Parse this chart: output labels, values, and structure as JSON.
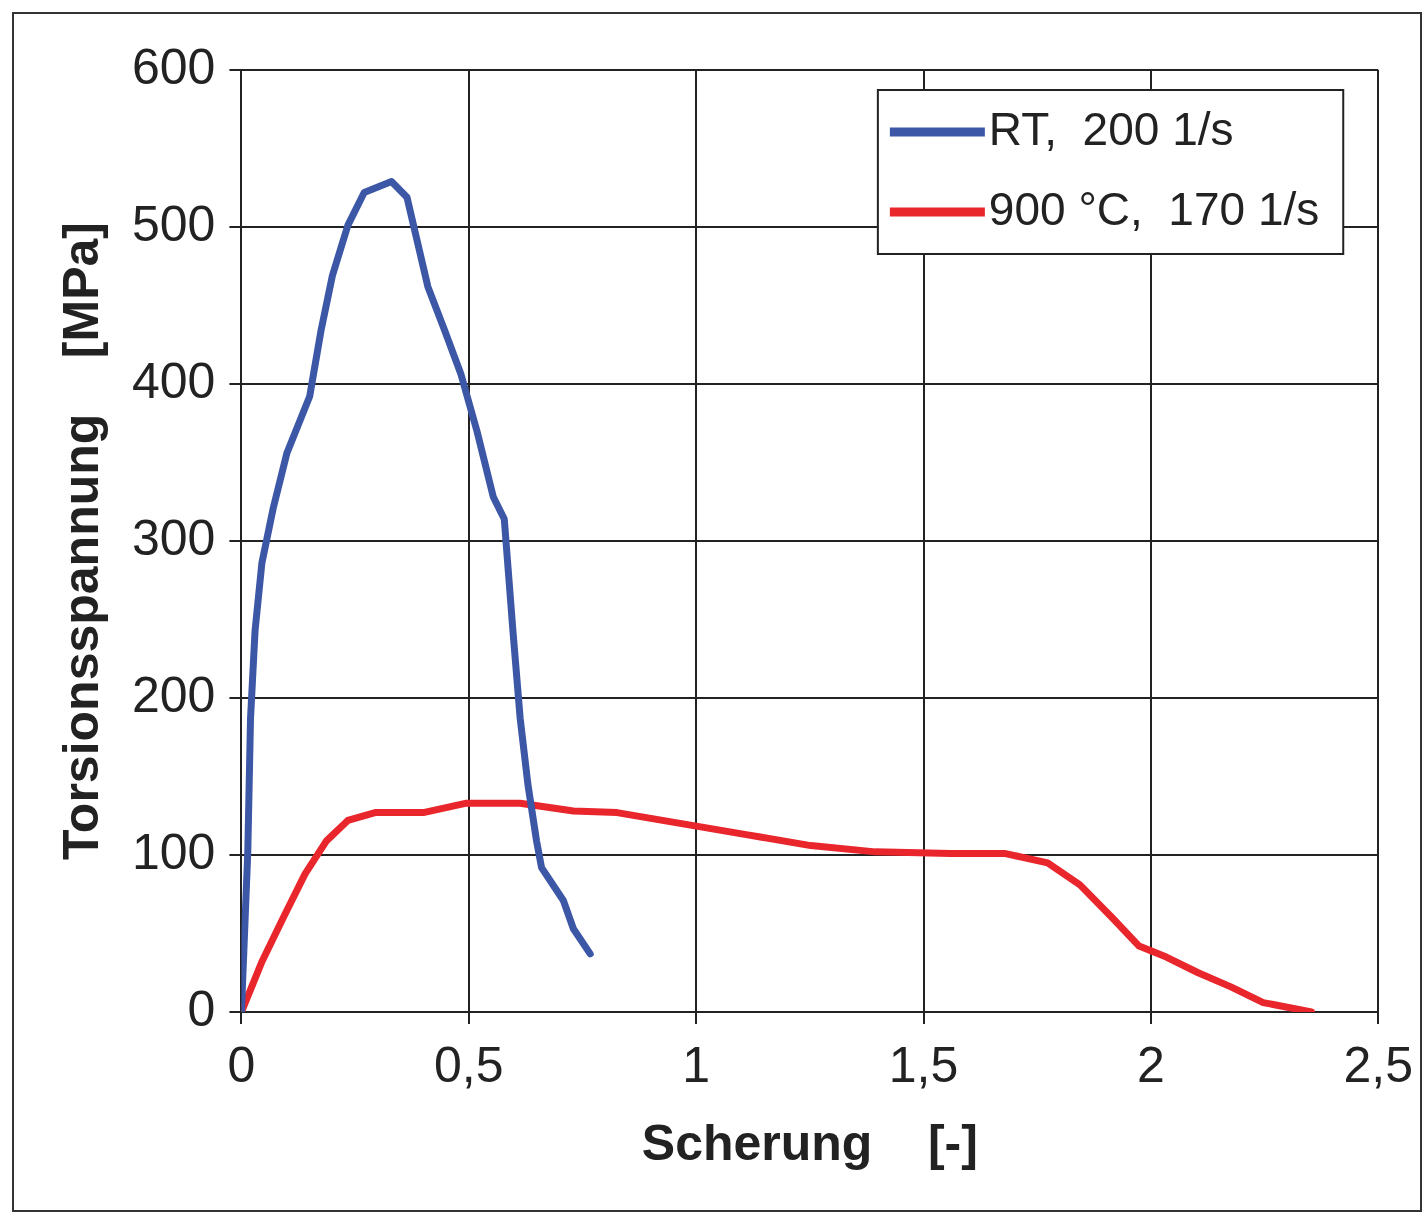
{
  "chart_data": {
    "type": "line",
    "xlabel": "Scherung    [-]",
    "ylabel": "Torsionsspannung    [MPa]",
    "xlim": [
      0,
      2.5
    ],
    "xticks": [
      0,
      {
        "value": 0.5,
        "label": "0,5"
      },
      1,
      {
        "value": 1.5,
        "label": "1,5"
      },
      2,
      {
        "value": 2.5,
        "label": "2,5"
      }
    ],
    "ylim": [
      0,
      600
    ],
    "yticks": [
      0,
      100,
      200,
      300,
      400,
      500,
      600
    ],
    "grid": true,
    "legend": "top right",
    "marker": "none",
    "line_style": "solid",
    "series": [
      {
        "name": "RT,  200 1/s",
        "color": "#3d57a7",
        "x": [
          0,
          0.014,
          0.02,
          0.03,
          0.045,
          0.07,
          0.1,
          0.15,
          0.175,
          0.2,
          0.234,
          0.27,
          0.33,
          0.364,
          0.41,
          0.447,
          0.483,
          0.518,
          0.554,
          0.578,
          0.597,
          0.613,
          0.63,
          0.649,
          0.66,
          0.708,
          0.73,
          0.767
        ],
        "values": [
          0,
          102,
          187,
          243,
          286,
          321,
          356,
          392,
          434,
          469,
          501,
          522,
          529,
          519,
          462,
          434,
          406,
          370,
          328,
          314,
          243,
          187,
          145,
          109,
          92,
          71,
          53,
          37
        ]
      },
      {
        "name": "900 °C,  170 1/s",
        "color": "#e8262c",
        "x": [
          0,
          0.045,
          0.092,
          0.14,
          0.187,
          0.234,
          0.294,
          0.4,
          0.495,
          0.613,
          0.73,
          0.826,
          0.968,
          1.11,
          1.252,
          1.394,
          1.56,
          1.678,
          1.773,
          1.844,
          1.915,
          1.974,
          2.034,
          2.104,
          2.176,
          2.247,
          2.353
        ],
        "values": [
          0,
          32,
          60,
          88,
          109,
          122,
          127,
          127,
          133,
          133,
          128,
          127,
          120,
          113,
          106,
          102,
          101,
          101,
          95,
          81,
          60,
          42,
          35,
          25,
          16,
          6,
          0
        ]
      }
    ]
  }
}
